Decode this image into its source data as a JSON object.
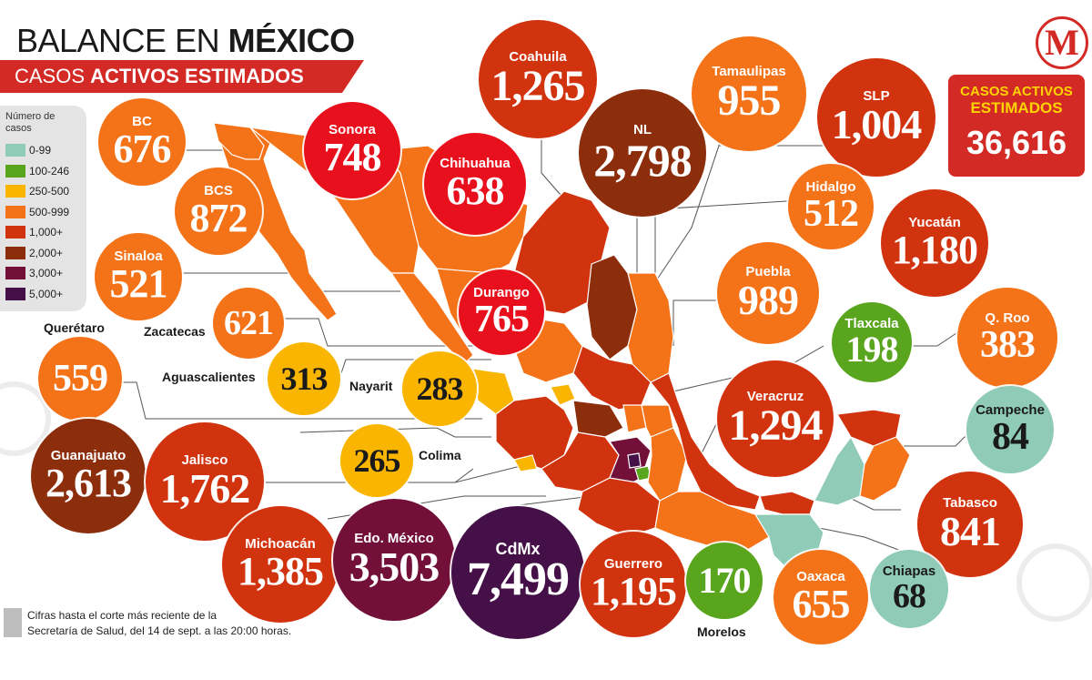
{
  "header": {
    "title_plain": "BALANCE EN",
    "title_bold": "MÉXICO",
    "subtitle_plain": "CASOS",
    "subtitle_bold": "ACTIVOS ESTIMADOS"
  },
  "logo": {
    "letter": "M",
    "icon": "milenio-logo"
  },
  "total": {
    "line1": "CASOS ACTIVOS",
    "line2": "ESTIMADOS",
    "value": "36,616"
  },
  "legend": {
    "title": "Número de casos",
    "items": [
      {
        "label": "0-99",
        "color": "#8fcbb7"
      },
      {
        "label": "100-246",
        "color": "#5aa51e"
      },
      {
        "label": "250-500",
        "color": "#f9b500"
      },
      {
        "label": "500-999",
        "color": "#f47218"
      },
      {
        "label": "1,000+",
        "color": "#d2330f"
      },
      {
        "label": "2,000+",
        "color": "#8c2d0c"
      },
      {
        "label": "3,000+",
        "color": "#72103a"
      },
      {
        "label": "5,000+",
        "color": "#441047"
      }
    ]
  },
  "states": [
    {
      "name": "BC",
      "value": "676"
    },
    {
      "name": "BCS",
      "value": "872"
    },
    {
      "name": "Sinaloa",
      "value": "521"
    },
    {
      "name": "Sonora",
      "value": "748"
    },
    {
      "name": "Chihuahua",
      "value": "638"
    },
    {
      "name": "Coahuila",
      "value": "1,265"
    },
    {
      "name": "NL",
      "value": "2,798"
    },
    {
      "name": "Tamaulipas",
      "value": "955"
    },
    {
      "name": "SLP",
      "value": "1,004"
    },
    {
      "name": "Hidalgo",
      "value": "512"
    },
    {
      "name": "Yucatán",
      "value": "1,180"
    },
    {
      "name": "Puebla",
      "value": "989"
    },
    {
      "name": "Durango",
      "value": "765"
    },
    {
      "name": "Zacatecas",
      "value": "621"
    },
    {
      "name": "Querétaro",
      "value": "559"
    },
    {
      "name": "Aguascalientes",
      "value": "313"
    },
    {
      "name": "Nayarit",
      "value": "283"
    },
    {
      "name": "Tlaxcala",
      "value": "198"
    },
    {
      "name": "Q. Roo",
      "value": "383"
    },
    {
      "name": "Veracruz",
      "value": "1,294"
    },
    {
      "name": "Campeche",
      "value": "84"
    },
    {
      "name": "Guanajuato",
      "value": "2,613"
    },
    {
      "name": "Jalisco",
      "value": "1,762"
    },
    {
      "name": "Colima",
      "value": "265"
    },
    {
      "name": "Tabasco",
      "value": "841"
    },
    {
      "name": "Michoacán",
      "value": "1,385"
    },
    {
      "name": "Edo. México",
      "value": "3,503"
    },
    {
      "name": "CdMx",
      "value": "7,499"
    },
    {
      "name": "Guerrero",
      "value": "1,195"
    },
    {
      "name": "Morelos",
      "value": "170"
    },
    {
      "name": "Oaxaca",
      "value": "655"
    },
    {
      "name": "Chiapas",
      "value": "68"
    }
  ],
  "footnote": {
    "line1": "Cifras hasta el corte más reciente de la",
    "line2": "Secretaría de Salud, del 14 de sept. a las 20:00 horas."
  }
}
